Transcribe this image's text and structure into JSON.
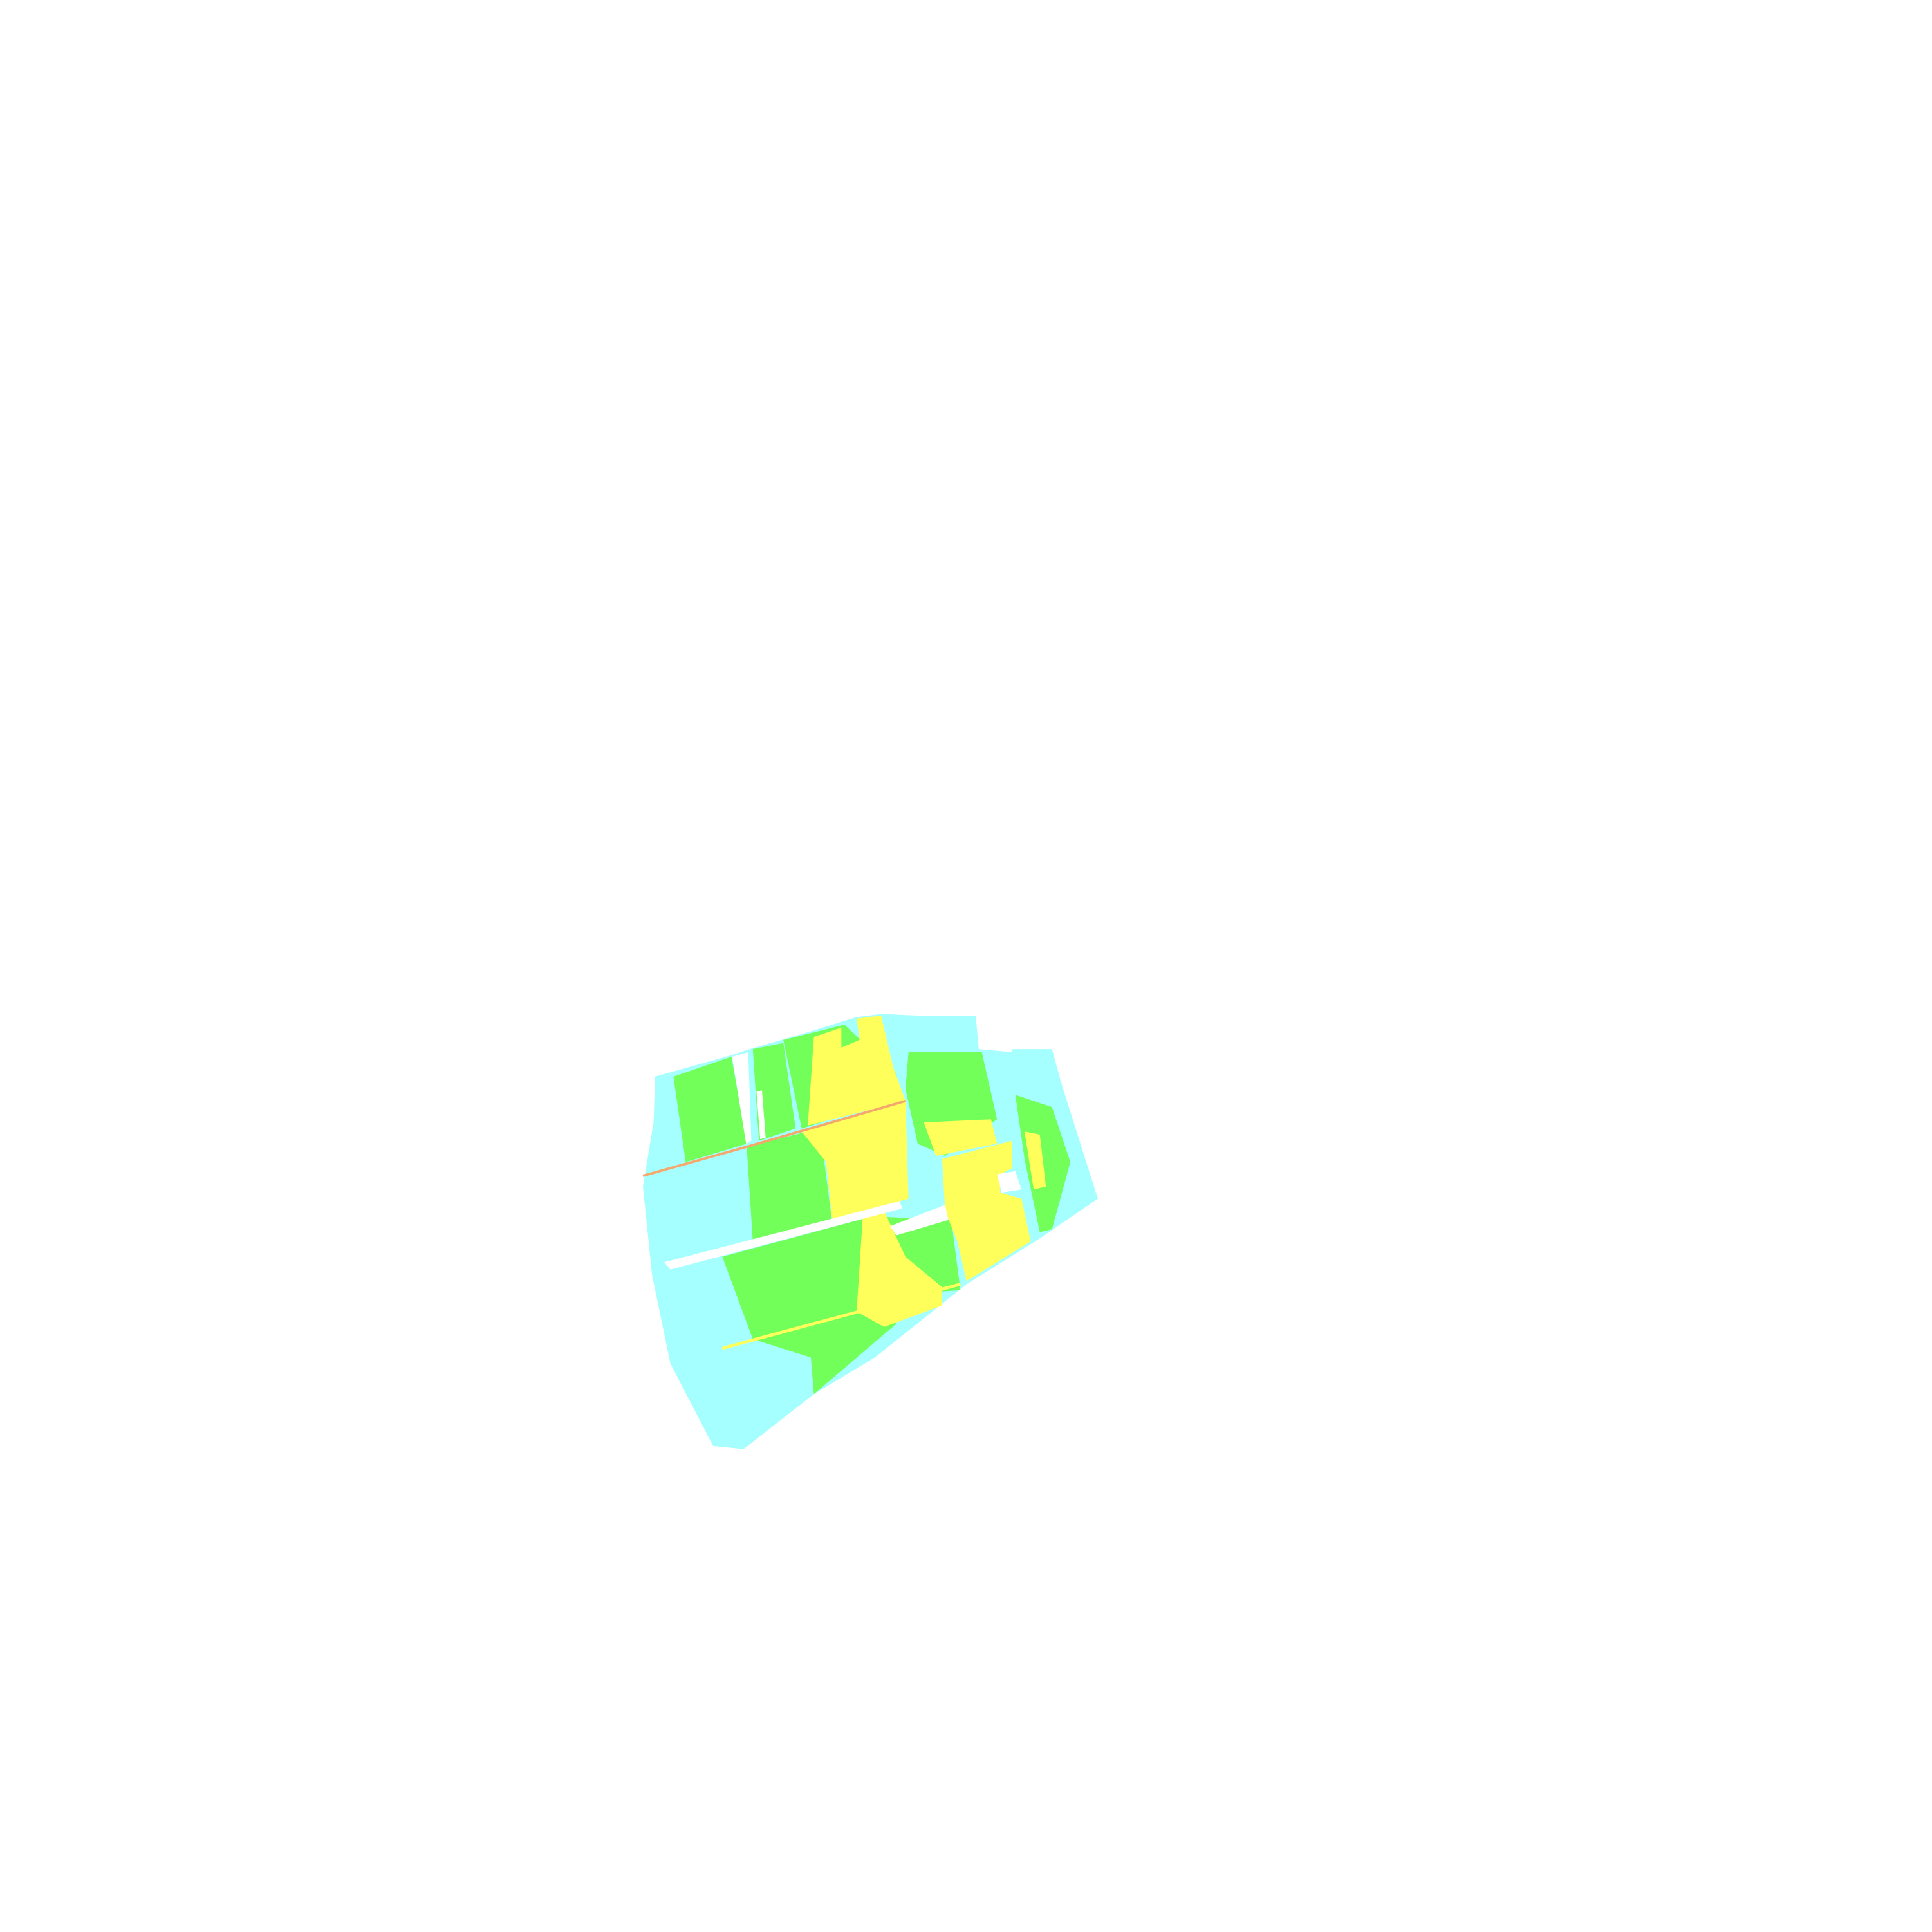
{
  "map": {
    "type": "classified raster",
    "background": "#ffffff",
    "classes": [
      {
        "color": "#a6ffff"
      },
      {
        "color": "#73ff59"
      },
      {
        "color": "#ffff5c"
      },
      {
        "color": "#f5a86b"
      }
    ]
  }
}
